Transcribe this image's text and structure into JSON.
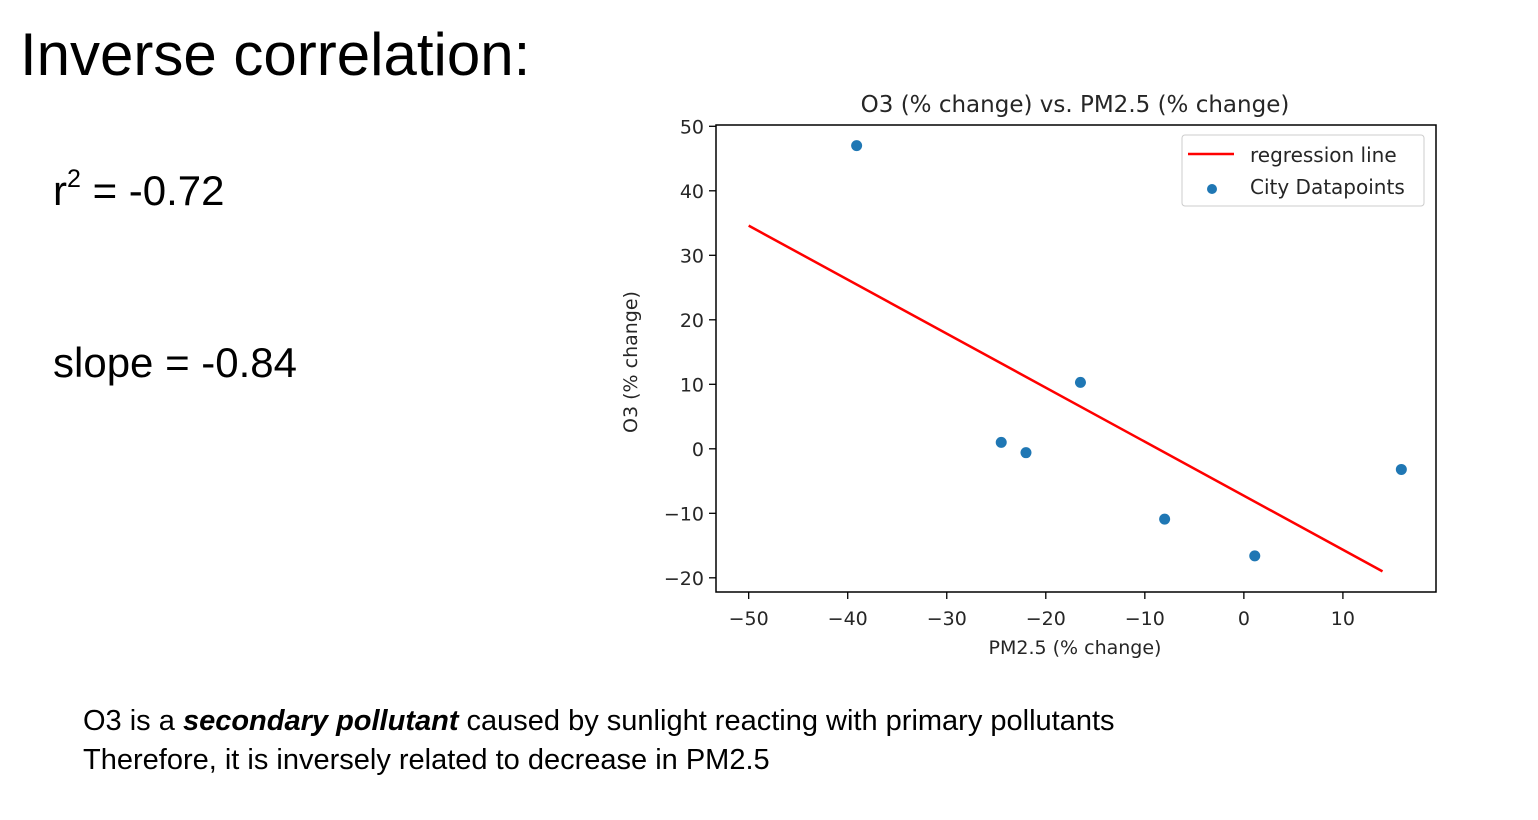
{
  "slide": {
    "title": "Inverse correlation:",
    "r2": {
      "base": "r",
      "superscript": "2",
      "value_text": " = -0.72"
    },
    "slope": {
      "text": "slope = -0.84"
    },
    "caption": {
      "line1_before": "O3 is a ",
      "line1_emphasis": "secondary pollutant",
      "line1_after": " caused by sunlight reacting with primary pollutants",
      "line2": "Therefore, it is inversely related to decrease in PM2.5"
    }
  },
  "chart_data": {
    "type": "scatter",
    "title": "O3 (% change) vs. PM2.5 (% change)",
    "xlabel": "PM2.5 (% change)",
    "ylabel": "O3 (% change)",
    "xlim": [
      -53.3,
      19.4
    ],
    "ylim": [
      -22.2,
      50.2
    ],
    "xticks": [
      -50,
      -40,
      -30,
      -20,
      -10,
      0,
      10
    ],
    "yticks": [
      -20,
      -10,
      0,
      10,
      20,
      30,
      40,
      50
    ],
    "xtick_labels": [
      "−50",
      "−40",
      "−30",
      "−20",
      "−10",
      "0",
      "10"
    ],
    "ytick_labels": [
      "−20",
      "−10",
      "0",
      "10",
      "20",
      "30",
      "40",
      "50"
    ],
    "grid": false,
    "legend": {
      "placement": "upper right",
      "entries": [
        "regression line",
        "City Datapoints"
      ]
    },
    "series": [
      {
        "name": "City Datapoints",
        "kind": "scatter",
        "color": "#1f77b4",
        "points": [
          {
            "x": -39.1,
            "y": 47.0
          },
          {
            "x": -24.5,
            "y": 1.0
          },
          {
            "x": -22.0,
            "y": -0.6
          },
          {
            "x": -16.5,
            "y": 10.3
          },
          {
            "x": -8.0,
            "y": -10.9
          },
          {
            "x": 1.1,
            "y": -16.6
          },
          {
            "x": 15.9,
            "y": -3.2
          }
        ]
      },
      {
        "name": "regression line",
        "kind": "line",
        "color": "#ff0000",
        "points": [
          {
            "x": -50.0,
            "y": 34.6
          },
          {
            "x": 14.0,
            "y": -19.0
          }
        ]
      }
    ]
  }
}
